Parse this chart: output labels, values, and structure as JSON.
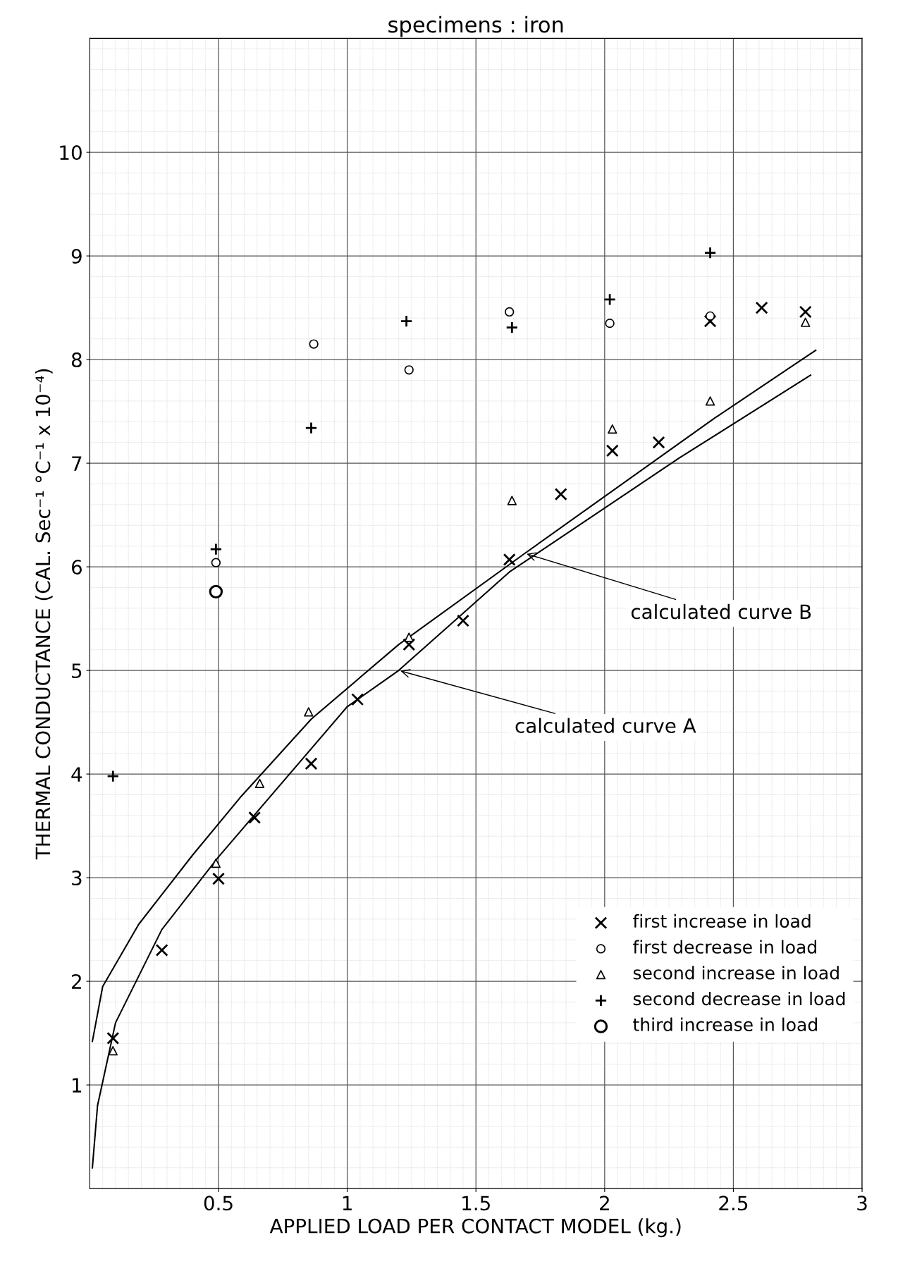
{
  "chart_data": {
    "type": "scatter",
    "title": "specimens : iron",
    "xlabel": "APPLIED LOAD PER CONTACT MODEL (kg.)",
    "ylabel": "THERMAL CONDUCTANCE (CAL. Sec⁻¹ °C⁻¹ x 10⁻⁴)",
    "xlim": [
      0,
      3
    ],
    "ylim": [
      0,
      11.1
    ],
    "xticks": [
      0.5,
      1,
      1.5,
      2,
      2.5,
      3
    ],
    "yticks": [
      1,
      2,
      3,
      4,
      5,
      6,
      7,
      8,
      9,
      10
    ],
    "grid": true,
    "legend": "bottom right",
    "series": [
      {
        "name": "first increase in load",
        "color": "#000000",
        "marker": "cross",
        "x": [
          0.09,
          0.28,
          0.5,
          0.64,
          0.86,
          1.04,
          1.24,
          1.45,
          1.63,
          1.83,
          2.03,
          2.21,
          2.41,
          2.61,
          2.78
        ],
        "values": [
          1.45,
          2.3,
          2.99,
          3.58,
          4.1,
          4.72,
          5.25,
          5.48,
          6.07,
          6.7,
          7.12,
          7.2,
          8.37,
          8.5,
          8.46
        ]
      },
      {
        "name": "first decrease in load",
        "color": "#000000",
        "marker": "circle",
        "x": [
          0.49,
          0.87,
          1.24,
          1.63,
          2.02,
          2.41
        ],
        "values": [
          6.04,
          8.15,
          7.9,
          8.46,
          8.35,
          8.42
        ]
      },
      {
        "name": "second increase in load",
        "color": "#000000",
        "marker": "triangle",
        "x": [
          0.09,
          0.49,
          0.66,
          0.85,
          1.24,
          1.64,
          2.03,
          2.41,
          2.78
        ],
        "values": [
          1.33,
          3.14,
          3.91,
          4.6,
          5.32,
          6.64,
          7.33,
          7.6,
          8.36
        ]
      },
      {
        "name": "second decrease in load",
        "color": "#000000",
        "marker": "plus",
        "x": [
          0.09,
          0.49,
          0.86,
          1.23,
          1.64,
          2.02,
          2.41
        ],
        "values": [
          3.98,
          6.17,
          7.34,
          8.37,
          8.31,
          8.58,
          9.03
        ]
      },
      {
        "name": "third increase in load",
        "color": "#000000",
        "marker": "circle",
        "x": [
          0.49
        ],
        "values": [
          5.76
        ]
      },
      {
        "type": "line",
        "color": "#000000",
        "marker": "none",
        "line_style": "solid",
        "x": [
          0.01,
          0.03,
          0.1,
          0.28,
          0.5,
          1.0,
          1.2,
          1.44,
          1.63,
          2.29,
          2.8
        ],
        "values": [
          0.2,
          0.8,
          1.6,
          2.5,
          3.2,
          4.65,
          5.0,
          5.53,
          5.95,
          7.05,
          7.85
        ]
      },
      {
        "type": "line",
        "color": "#000000",
        "marker": "none",
        "line_style": "solid",
        "x": [
          0.01,
          0.05,
          0.19,
          0.4,
          0.59,
          0.86,
          1.2,
          1.69,
          2.43,
          2.82
        ],
        "values": [
          1.42,
          1.95,
          2.55,
          3.22,
          3.79,
          4.53,
          5.25,
          6.13,
          7.44,
          8.09
        ]
      }
    ],
    "annotations": [
      {
        "text": "calculated curve B",
        "x": 1.69,
        "y": 6.13
      },
      {
        "text": "calculated curve A",
        "x": 1.2,
        "y": 5.0
      }
    ]
  }
}
